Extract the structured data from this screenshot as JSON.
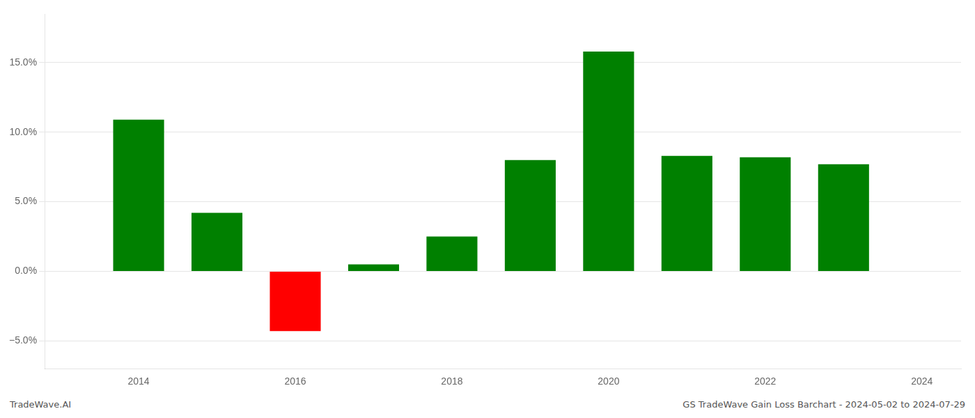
{
  "chart_data": {
    "type": "bar",
    "x": [
      2014,
      2015,
      2016,
      2017,
      2018,
      2019,
      2020,
      2021,
      2022,
      2023
    ],
    "values": [
      0.109,
      0.042,
      -0.043,
      0.005,
      0.025,
      0.08,
      0.158,
      0.083,
      0.082,
      0.077
    ],
    "colors": [
      "#008000",
      "#008000",
      "#ff0000",
      "#008000",
      "#008000",
      "#008000",
      "#008000",
      "#008000",
      "#008000",
      "#008000"
    ],
    "xlim": [
      2012.8,
      2024.5
    ],
    "xticks": [
      2014,
      2016,
      2018,
      2020,
      2022,
      2024
    ],
    "ylim": [
      -0.07,
      0.185
    ],
    "yticks": [
      {
        "value": -0.05,
        "label": "−5.0%"
      },
      {
        "value": 0.0,
        "label": "0.0%"
      },
      {
        "value": 0.05,
        "label": "5.0%"
      },
      {
        "value": 0.1,
        "label": "10.0%"
      },
      {
        "value": 0.15,
        "label": "15.0%"
      }
    ],
    "grid": "y",
    "annotations": [
      "TradeWave.AI",
      "GS TradeWave Gain Loss Barchart - 2024-05-02 to 2024-07-29"
    ]
  }
}
